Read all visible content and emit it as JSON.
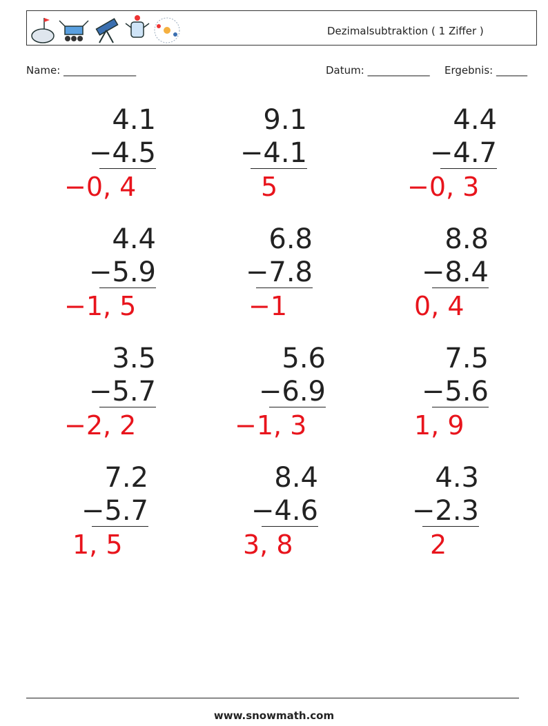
{
  "header": {
    "title": "Dezimalsubtraktion ( 1 Ziffer )"
  },
  "fields": {
    "name": "Name: ______________",
    "date": "Datum: ____________",
    "result": "Ergebnis: ______"
  },
  "problems": [
    {
      "top": "4.1",
      "bottom": "−4.5",
      "answer": "−0, 4"
    },
    {
      "top": "9.1",
      "bottom": "−4.1",
      "answer": "5"
    },
    {
      "top": "4.4",
      "bottom": "−4.7",
      "answer": "−0, 3"
    },
    {
      "top": "4.4",
      "bottom": "−5.9",
      "answer": "−1, 5"
    },
    {
      "top": "6.8",
      "bottom": "−7.8",
      "answer": "−1"
    },
    {
      "top": "8.8",
      "bottom": "−8.4",
      "answer": "0, 4"
    },
    {
      "top": "3.5",
      "bottom": "−5.7",
      "answer": "−2, 2"
    },
    {
      "top": "5.6",
      "bottom": "−6.9",
      "answer": "−1, 3"
    },
    {
      "top": "7.5",
      "bottom": "−5.6",
      "answer": "1, 9"
    },
    {
      "top": "7.2",
      "bottom": "−5.7",
      "answer": "1, 5"
    },
    {
      "top": "8.4",
      "bottom": "−4.6",
      "answer": "3, 8"
    },
    {
      "top": "4.3",
      "bottom": "−2.3",
      "answer": "2"
    }
  ],
  "footer": {
    "url": "www.snowmath.com"
  }
}
